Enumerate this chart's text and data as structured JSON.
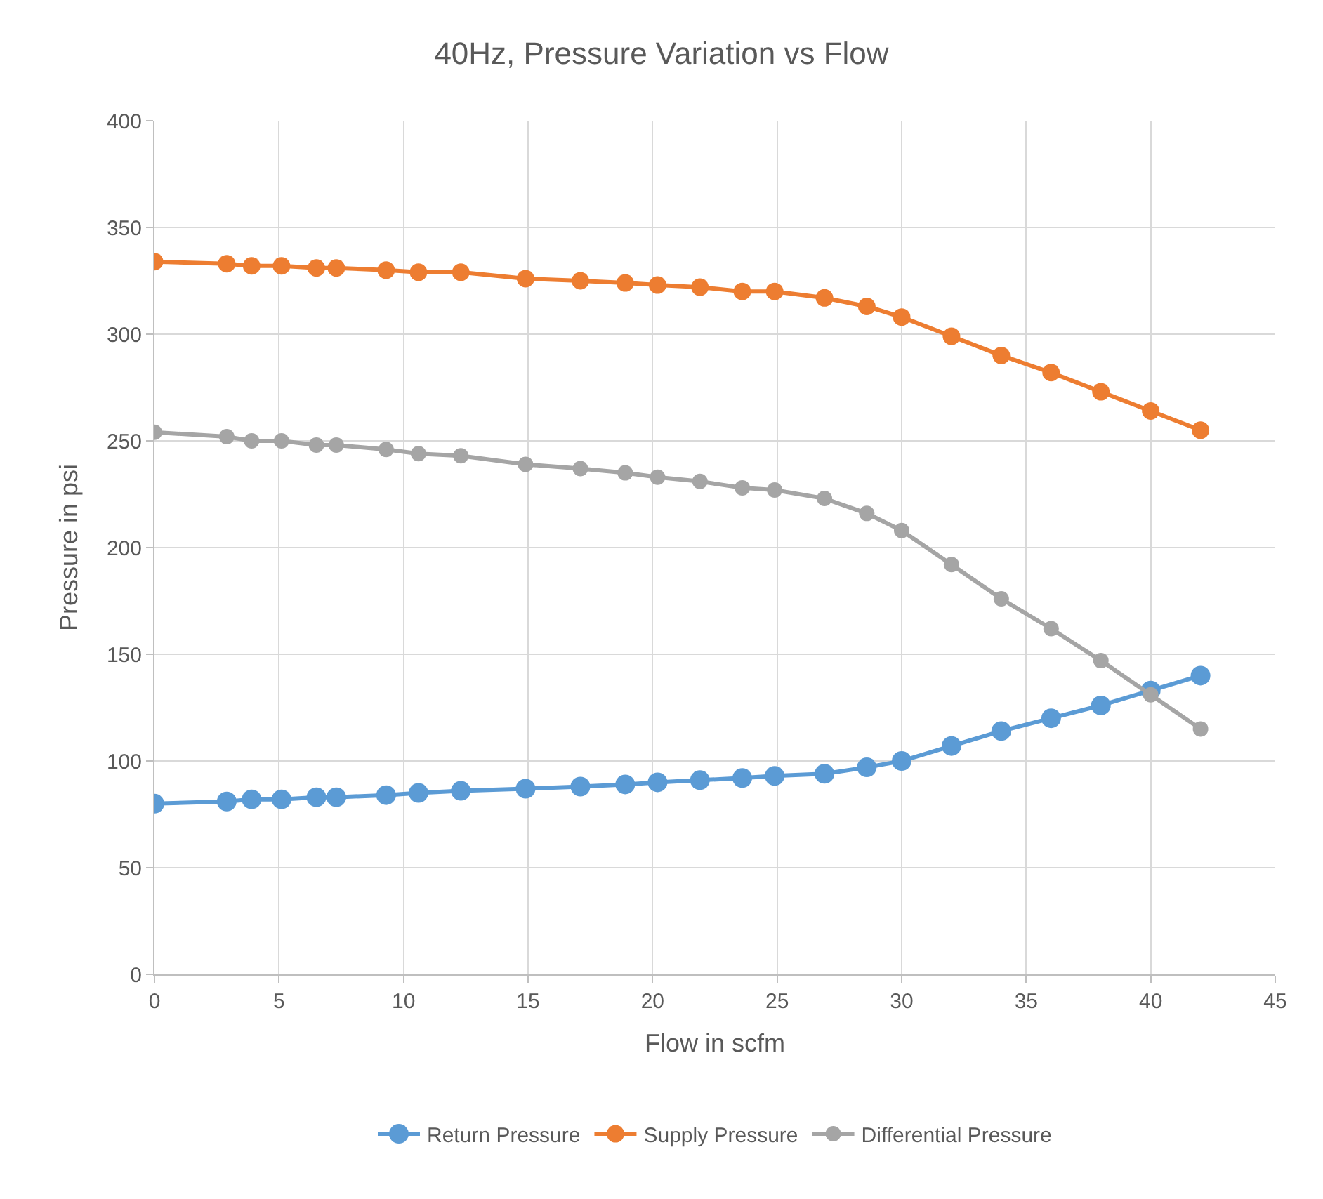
{
  "chart_data": {
    "type": "line",
    "title": "40Hz, Pressure Variation vs Flow",
    "xlabel": "Flow in scfm",
    "ylabel": "Pressure in psi",
    "x": [
      0,
      2.9,
      3.9,
      5.1,
      6.5,
      7.3,
      9.3,
      10.6,
      12.3,
      14.9,
      17.1,
      18.9,
      20.2,
      21.9,
      23.6,
      24.9,
      26.9,
      28.6,
      30,
      32,
      34,
      36,
      38,
      40,
      42
    ],
    "series": [
      {
        "name": "Return Pressure",
        "color": "#5b9bd5",
        "values": [
          80,
          81,
          82,
          82,
          83,
          83,
          84,
          85,
          86,
          87,
          88,
          89,
          90,
          91,
          92,
          93,
          94,
          97,
          100,
          107,
          114,
          120,
          126,
          133,
          140
        ]
      },
      {
        "name": "Supply Pressure",
        "color": "#ed7d31",
        "values": [
          334,
          333,
          332,
          332,
          331,
          331,
          330,
          329,
          329,
          326,
          325,
          324,
          323,
          322,
          320,
          320,
          317,
          313,
          308,
          299,
          290,
          282,
          273,
          264,
          255
        ]
      },
      {
        "name": "Differential Pressure",
        "color": "#a5a5a5",
        "values": [
          254,
          252,
          250,
          250,
          248,
          248,
          246,
          244,
          243,
          239,
          237,
          235,
          233,
          231,
          228,
          227,
          223,
          216,
          208,
          192,
          176,
          162,
          147,
          131,
          115
        ]
      }
    ],
    "xlim": [
      0,
      45
    ],
    "xticks": [
      0,
      5,
      10,
      15,
      20,
      25,
      30,
      35,
      40,
      45
    ],
    "ylim": [
      0,
      400
    ],
    "yticks": [
      0,
      50,
      100,
      150,
      200,
      250,
      300,
      350,
      400
    ],
    "grid": true,
    "legend": "bottom",
    "marker": "circle",
    "line_style": "solid"
  }
}
